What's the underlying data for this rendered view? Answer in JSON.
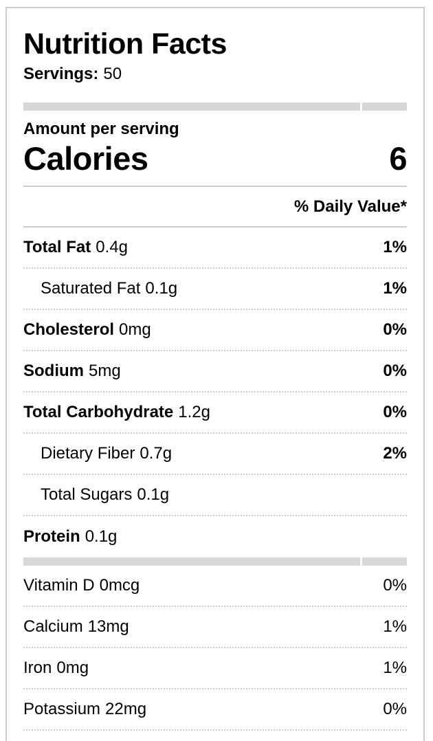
{
  "colors": {
    "bar": "#d8d8d8",
    "divider_solid": "#cccccc",
    "divider_dotted": "#c9c9c9",
    "card_border": "#cccccc",
    "text": "#000000",
    "background": "#ffffff"
  },
  "header": {
    "title": "Nutrition Facts",
    "servings_label": "Servings:",
    "servings_value": "50",
    "amount_per_serving_label": "Amount per serving",
    "calories_label": "Calories",
    "calories_value": "6",
    "daily_value_header": "% Daily Value*"
  },
  "nutrients": [
    {
      "name": "Total Fat",
      "amount": "0.4g",
      "daily_value": "1%"
    },
    {
      "name": "Saturated Fat",
      "amount": "0.1g",
      "daily_value": "1%"
    },
    {
      "name": "Cholesterol",
      "amount": "0mg",
      "daily_value": "0%"
    },
    {
      "name": "Sodium",
      "amount": "5mg",
      "daily_value": "0%"
    },
    {
      "name": "Total Carbohydrate",
      "amount": "1.2g",
      "daily_value": "0%"
    },
    {
      "name": "Dietary Fiber",
      "amount": "0.7g",
      "daily_value": "2%"
    },
    {
      "name": "Total Sugars",
      "amount": "0.1g",
      "daily_value": ""
    },
    {
      "name": "Protein",
      "amount": "0.1g",
      "daily_value": ""
    }
  ],
  "micronutrients": [
    {
      "name": "Vitamin D",
      "amount": "0mcg",
      "daily_value": "0%"
    },
    {
      "name": "Calcium",
      "amount": "13mg",
      "daily_value": "1%"
    },
    {
      "name": "Iron",
      "amount": "0mg",
      "daily_value": "1%"
    },
    {
      "name": "Potassium",
      "amount": "22mg",
      "daily_value": "0%"
    }
  ]
}
